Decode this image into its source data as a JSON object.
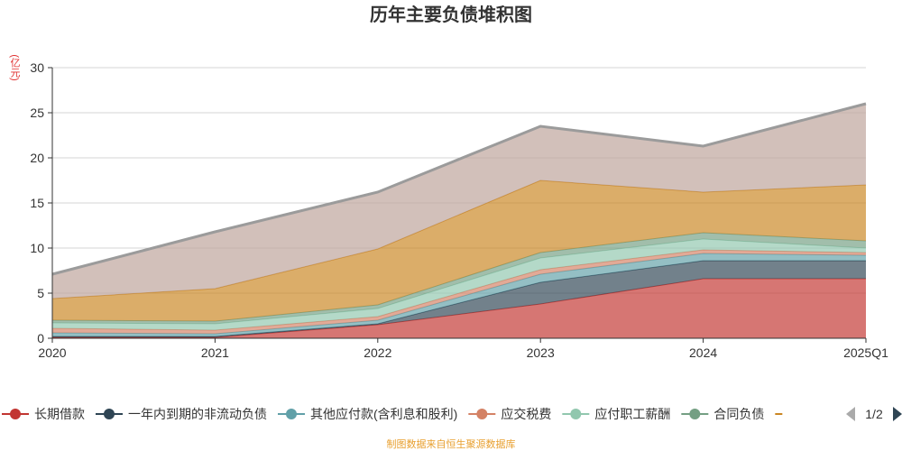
{
  "chart_data": {
    "type": "area",
    "stacked": true,
    "title": "历年主要负债堆积图",
    "unit_label": "(亿元)",
    "x": [
      "2020",
      "2021",
      "2022",
      "2023",
      "2024",
      "2025Q1"
    ],
    "ylim": [
      0,
      30
    ],
    "yticks": [
      0,
      5,
      10,
      15,
      20,
      25,
      30
    ],
    "grid": true,
    "legend_position": "bottom",
    "series": [
      {
        "name": "长期借款",
        "color": "#c23531",
        "values": [
          0.1,
          0.1,
          1.5,
          3.8,
          6.6,
          6.6
        ]
      },
      {
        "name": "一年内到期的非流动负债",
        "color": "#2f4554",
        "values": [
          0.1,
          0.1,
          0.1,
          2.4,
          2.0,
          2.0
        ]
      },
      {
        "name": "其他应付款(含利息和股利)",
        "color": "#61a0a8",
        "values": [
          0.4,
          0.3,
          0.4,
          0.9,
          0.8,
          0.6
        ]
      },
      {
        "name": "应交税费",
        "color": "#d48265",
        "values": [
          0.5,
          0.4,
          0.4,
          0.5,
          0.4,
          0.3
        ]
      },
      {
        "name": "应付职工薪酬",
        "color": "#91c7ae",
        "values": [
          0.6,
          0.7,
          0.9,
          1.3,
          1.2,
          0.5
        ]
      },
      {
        "name": "合同负债",
        "color": "#749f83",
        "values": [
          0.3,
          0.3,
          0.4,
          0.6,
          0.7,
          0.8
        ]
      },
      {
        "name": "",
        "color": "#ca8622",
        "values": [
          2.4,
          3.6,
          6.2,
          8.0,
          4.5,
          6.2
        ]
      },
      {
        "name": "",
        "color": "#bda29a",
        "values": [
          2.7,
          6.3,
          6.3,
          6.0,
          5.1,
          9.0
        ]
      }
    ],
    "visible_legend_count": 6,
    "legend_page": "1/2",
    "source": "制图数据来自恒生聚源数据库"
  }
}
